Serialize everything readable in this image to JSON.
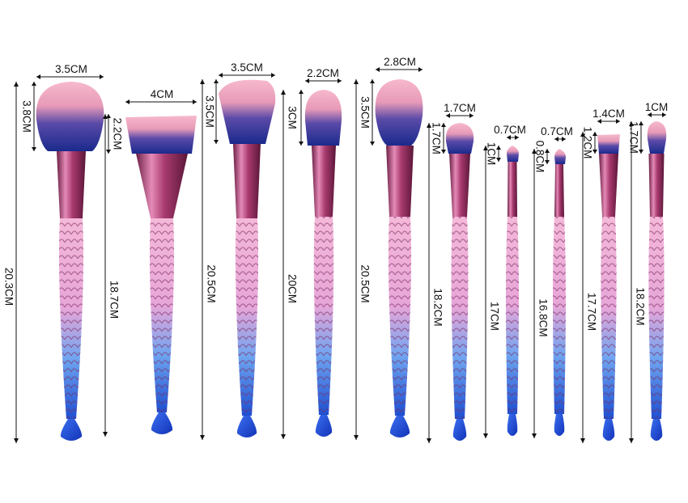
{
  "colors": {
    "background": "#ffffff",
    "bristle_tip": "#f6b3c8",
    "bristle_base": "#1a2a8c",
    "ferrule": "#a83a6f",
    "handle_top": "#f2b5d6",
    "handle_bottom": "#1f5fd6",
    "dimension_line": "#111111"
  },
  "brushes": [
    {
      "head_width": "3.5CM",
      "head_height": "3.8CM",
      "total_length": "20.3CM"
    },
    {
      "head_width": "4CM",
      "head_height": "2.2CM",
      "total_length": "18.7CM"
    },
    {
      "head_width": "3.5CM",
      "head_height": "3.5CM",
      "total_length": "20.5CM"
    },
    {
      "head_width": "2.2CM",
      "head_height": "3CM",
      "total_length": "20CM"
    },
    {
      "head_width": "2.8CM",
      "head_height": "3.5CM",
      "total_length": "20.5CM"
    },
    {
      "head_width": "1.7CM",
      "head_height": "1.7CM",
      "total_length": "18.2CM"
    },
    {
      "head_width": "0.7CM",
      "head_height": "1CM",
      "total_length": "17CM"
    },
    {
      "head_width": "0.7CM",
      "head_height": "0.8CM",
      "total_length": "16.8CM"
    },
    {
      "head_width": "1.4CM",
      "head_height": "1.2CM",
      "total_length": "17.7CM"
    },
    {
      "head_width": "1CM",
      "head_height": "1.7CM",
      "total_length": "18.2CM"
    }
  ]
}
